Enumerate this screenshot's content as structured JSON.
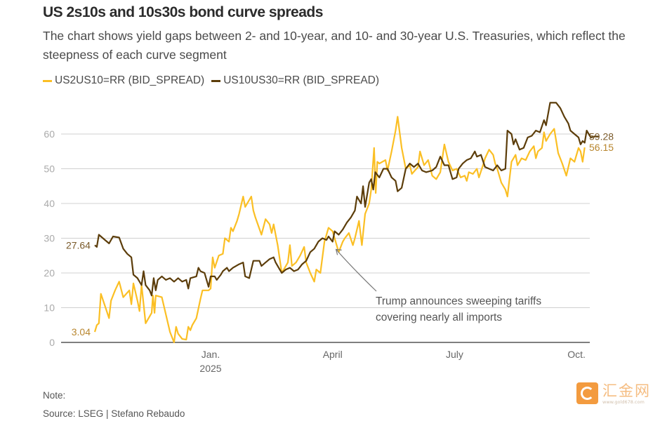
{
  "header": {
    "title": "US 2s10s and 10s30s bond curve spreads",
    "subtitle": "The chart shows yield gaps between 2- and 10-year, and 10- and 30-year U.S. Treasuries, which reflect the steepness of each curve segment"
  },
  "legend": [
    {
      "label": "US2US10=RR (BID_SPREAD)",
      "color": "#fbbf24"
    },
    {
      "label": "US10US30=RR (BID_SPREAD)",
      "color": "#5c3d0a"
    }
  ],
  "footer": {
    "note": "Note:",
    "source": "Source: LSEG | Stefano Rebaudo"
  },
  "watermark": {
    "name": "汇金网",
    "url": "www.gold678.com"
  },
  "chart_data": {
    "type": "line",
    "title": "US 2s10s and 10s30s bond curve spreads",
    "xlabel": "",
    "ylabel": "",
    "x_unit": "months since Jan 1 2025",
    "xlim": [
      -2.85,
      9.2
    ],
    "ylim": [
      0,
      65
    ],
    "yticks": [
      0,
      10,
      20,
      30,
      40,
      50,
      60
    ],
    "xticks": [
      {
        "value": 0,
        "label": "Jan.",
        "sublabel": "2025"
      },
      {
        "value": 3,
        "label": "April",
        "sublabel": ""
      },
      {
        "value": 6,
        "label": "July",
        "sublabel": ""
      },
      {
        "value": 9,
        "label": "Oct.",
        "sublabel": ""
      }
    ],
    "grid": true,
    "legend_position": "top-left",
    "series": [
      {
        "name": "US2US10=RR (BID_SPREAD)",
        "color": "#fbbf24",
        "start_label": "3.04",
        "end_label": "56.15",
        "points": [
          [
            -2.85,
            3.0
          ],
          [
            -2.8,
            5.0
          ],
          [
            -2.75,
            5.5
          ],
          [
            -2.7,
            14.0
          ],
          [
            -2.6,
            10.5
          ],
          [
            -2.5,
            7.0
          ],
          [
            -2.45,
            12.0
          ],
          [
            -2.35,
            15.0
          ],
          [
            -2.25,
            17.5
          ],
          [
            -2.15,
            13.0
          ],
          [
            -2.0,
            15.0
          ],
          [
            -1.95,
            11.0
          ],
          [
            -1.9,
            17.0
          ],
          [
            -1.8,
            12.0
          ],
          [
            -1.75,
            9.0
          ],
          [
            -1.7,
            16.5
          ],
          [
            -1.6,
            5.5
          ],
          [
            -1.45,
            8.5
          ],
          [
            -1.42,
            13.5
          ],
          [
            -1.38,
            8.5
          ],
          [
            -1.35,
            13.5
          ],
          [
            -1.2,
            13.0
          ],
          [
            -1.1,
            8.0
          ],
          [
            -1.0,
            3.0
          ],
          [
            -0.9,
            0.0
          ],
          [
            -0.85,
            4.5
          ],
          [
            -0.8,
            2.5
          ],
          [
            -0.7,
            1.0
          ],
          [
            -0.6,
            0.8
          ],
          [
            -0.55,
            4.5
          ],
          [
            -0.5,
            3.5
          ],
          [
            -0.45,
            5.0
          ],
          [
            -0.35,
            7.0
          ],
          [
            -0.25,
            12.5
          ],
          [
            -0.2,
            15.0
          ],
          [
            -0.05,
            15.0
          ],
          [
            0.0,
            15.5
          ],
          [
            0.05,
            24.5
          ],
          [
            0.1,
            21.5
          ],
          [
            0.2,
            25.0
          ],
          [
            0.3,
            25.5
          ],
          [
            0.35,
            30.0
          ],
          [
            0.45,
            29.0
          ],
          [
            0.5,
            33.0
          ],
          [
            0.55,
            32.0
          ],
          [
            0.65,
            35.0
          ],
          [
            0.7,
            37.0
          ],
          [
            0.8,
            42.0
          ],
          [
            0.85,
            39.0
          ],
          [
            0.95,
            41.0
          ],
          [
            1.0,
            42.0
          ],
          [
            1.05,
            38.0
          ],
          [
            1.1,
            36.0
          ],
          [
            1.25,
            31.0
          ],
          [
            1.35,
            35.5
          ],
          [
            1.45,
            34.0
          ],
          [
            1.5,
            31.5
          ],
          [
            1.55,
            34.0
          ],
          [
            1.65,
            28.0
          ],
          [
            1.75,
            20.0
          ],
          [
            1.8,
            21.0
          ],
          [
            1.9,
            23.0
          ],
          [
            1.95,
            28.0
          ],
          [
            2.0,
            22.0
          ],
          [
            2.1,
            23.0
          ],
          [
            2.2,
            25.0
          ],
          [
            2.3,
            27.5
          ],
          [
            2.35,
            23.0
          ],
          [
            2.45,
            20.0
          ],
          [
            2.55,
            17.5
          ],
          [
            2.6,
            21.0
          ],
          [
            2.7,
            20.0
          ],
          [
            2.8,
            29.0
          ],
          [
            2.9,
            33.0
          ],
          [
            3.0,
            32.0
          ],
          [
            3.1,
            28.0
          ],
          [
            3.15,
            26.0
          ],
          [
            3.25,
            29.0
          ],
          [
            3.3,
            30.0
          ],
          [
            3.4,
            31.5
          ],
          [
            3.5,
            28.0
          ],
          [
            3.55,
            30.0
          ],
          [
            3.65,
            35.0
          ],
          [
            3.72,
            28.0
          ],
          [
            3.8,
            37.0
          ],
          [
            3.9,
            40.0
          ],
          [
            3.95,
            44.0
          ],
          [
            4.02,
            56.0
          ],
          [
            4.06,
            43.0
          ],
          [
            4.1,
            52.0
          ],
          [
            4.15,
            51.5
          ],
          [
            4.3,
            52.5
          ],
          [
            4.35,
            49.5
          ],
          [
            4.45,
            55.0
          ],
          [
            4.55,
            61.0
          ],
          [
            4.6,
            65.0
          ],
          [
            4.7,
            56.0
          ],
          [
            4.8,
            50.0
          ],
          [
            4.9,
            51.0
          ],
          [
            4.95,
            48.5
          ],
          [
            5.1,
            50.5
          ],
          [
            5.15,
            55.0
          ],
          [
            5.25,
            51.0
          ],
          [
            5.35,
            52.5
          ],
          [
            5.45,
            48.0
          ],
          [
            5.55,
            47.0
          ],
          [
            5.65,
            49.0
          ],
          [
            5.75,
            57.0
          ],
          [
            5.85,
            52.0
          ],
          [
            5.95,
            49.5
          ],
          [
            6.05,
            50.0
          ],
          [
            6.15,
            47.5
          ],
          [
            6.25,
            48.0
          ],
          [
            6.3,
            46.5
          ],
          [
            6.35,
            49.0
          ],
          [
            6.45,
            48.5
          ],
          [
            6.55,
            50.0
          ],
          [
            6.6,
            47.5
          ],
          [
            6.7,
            51.0
          ],
          [
            6.75,
            53.0
          ],
          [
            6.85,
            55.5
          ],
          [
            6.95,
            54.0
          ],
          [
            7.0,
            51.5
          ],
          [
            7.05,
            50.0
          ],
          [
            7.15,
            46.0
          ],
          [
            7.25,
            44.0
          ],
          [
            7.3,
            42.0
          ],
          [
            7.4,
            52.0
          ],
          [
            7.5,
            54.0
          ],
          [
            7.55,
            51.0
          ],
          [
            7.65,
            53.0
          ],
          [
            7.75,
            52.5
          ],
          [
            7.85,
            55.0
          ],
          [
            7.95,
            56.5
          ],
          [
            8.0,
            53.0
          ],
          [
            8.05,
            55.0
          ],
          [
            8.15,
            56.0
          ],
          [
            8.2,
            60.5
          ],
          [
            8.25,
            58.0
          ],
          [
            8.35,
            60.0
          ],
          [
            8.45,
            61.5
          ],
          [
            8.55,
            54.5
          ],
          [
            8.65,
            51.5
          ],
          [
            8.75,
            48.0
          ],
          [
            8.85,
            53.0
          ],
          [
            8.95,
            52.0
          ],
          [
            9.05,
            56.0
          ],
          [
            9.1,
            55.0
          ],
          [
            9.15,
            52.0
          ],
          [
            9.2,
            56.15
          ]
        ]
      },
      {
        "name": "US10US30=RR (BID_SPREAD)",
        "color": "#5c3d0a",
        "start_label": "27.64",
        "end_label": "59.28",
        "points": [
          [
            -2.85,
            28.0
          ],
          [
            -2.8,
            27.5
          ],
          [
            -2.75,
            31.0
          ],
          [
            -2.6,
            29.5
          ],
          [
            -2.5,
            28.5
          ],
          [
            -2.4,
            30.5
          ],
          [
            -2.25,
            30.2
          ],
          [
            -2.15,
            27.0
          ],
          [
            -2.05,
            25.5
          ],
          [
            -1.95,
            24.5
          ],
          [
            -1.9,
            19.5
          ],
          [
            -1.8,
            18.5
          ],
          [
            -1.7,
            16.5
          ],
          [
            -1.65,
            20.5
          ],
          [
            -1.6,
            16.5
          ],
          [
            -1.5,
            15.0
          ],
          [
            -1.45,
            13.5
          ],
          [
            -1.4,
            18.5
          ],
          [
            -1.35,
            15.0
          ],
          [
            -1.3,
            18.0
          ],
          [
            -1.2,
            19.0
          ],
          [
            -1.1,
            18.0
          ],
          [
            -1.0,
            18.5
          ],
          [
            -0.9,
            17.5
          ],
          [
            -0.8,
            18.5
          ],
          [
            -0.7,
            17.5
          ],
          [
            -0.6,
            18.0
          ],
          [
            -0.55,
            15.5
          ],
          [
            -0.5,
            18.5
          ],
          [
            -0.35,
            19.0
          ],
          [
            -0.3,
            21.5
          ],
          [
            -0.25,
            20.5
          ],
          [
            -0.15,
            20.0
          ],
          [
            -0.05,
            16.0
          ],
          [
            0.0,
            19.0
          ],
          [
            0.1,
            19.0
          ],
          [
            0.15,
            18.0
          ],
          [
            0.25,
            19.5
          ],
          [
            0.3,
            20.5
          ],
          [
            0.4,
            21.5
          ],
          [
            0.45,
            20.5
          ],
          [
            0.55,
            21.5
          ],
          [
            0.7,
            22.5
          ],
          [
            0.8,
            23.0
          ],
          [
            0.85,
            19.0
          ],
          [
            0.95,
            18.5
          ],
          [
            1.05,
            23.5
          ],
          [
            1.2,
            23.5
          ],
          [
            1.25,
            22.0
          ],
          [
            1.35,
            23.0
          ],
          [
            1.45,
            24.0
          ],
          [
            1.55,
            24.5
          ],
          [
            1.6,
            23.0
          ],
          [
            1.7,
            21.0
          ],
          [
            1.75,
            20.0
          ],
          [
            1.85,
            21.0
          ],
          [
            1.95,
            21.5
          ],
          [
            2.05,
            20.5
          ],
          [
            2.15,
            21.0
          ],
          [
            2.25,
            22.5
          ],
          [
            2.35,
            23.5
          ],
          [
            2.45,
            26.0
          ],
          [
            2.55,
            27.0
          ],
          [
            2.65,
            29.0
          ],
          [
            2.75,
            30.0
          ],
          [
            2.85,
            29.5
          ],
          [
            2.9,
            30.5
          ],
          [
            3.0,
            29.0
          ],
          [
            3.05,
            32.0
          ],
          [
            3.15,
            31.0
          ],
          [
            3.25,
            32.5
          ],
          [
            3.35,
            34.5
          ],
          [
            3.45,
            36.0
          ],
          [
            3.55,
            38.0
          ],
          [
            3.6,
            42.0
          ],
          [
            3.7,
            40.0
          ],
          [
            3.75,
            45.0
          ],
          [
            3.8,
            39.0
          ],
          [
            3.9,
            46.0
          ],
          [
            3.95,
            47.0
          ],
          [
            4.0,
            44.0
          ],
          [
            4.05,
            49.0
          ],
          [
            4.15,
            47.5
          ],
          [
            4.25,
            50.0
          ],
          [
            4.35,
            50.0
          ],
          [
            4.45,
            47.5
          ],
          [
            4.55,
            46.5
          ],
          [
            4.6,
            43.5
          ],
          [
            4.7,
            44.5
          ],
          [
            4.8,
            50.0
          ],
          [
            4.9,
            51.5
          ],
          [
            5.0,
            50.5
          ],
          [
            5.1,
            51.5
          ],
          [
            5.2,
            49.5
          ],
          [
            5.3,
            49.0
          ],
          [
            5.45,
            49.5
          ],
          [
            5.55,
            50.5
          ],
          [
            5.65,
            53.5
          ],
          [
            5.75,
            51.0
          ],
          [
            5.85,
            51.0
          ],
          [
            5.95,
            47.0
          ],
          [
            6.05,
            47.5
          ],
          [
            6.1,
            50.0
          ],
          [
            6.2,
            51.5
          ],
          [
            6.3,
            52.5
          ],
          [
            6.4,
            53.0
          ],
          [
            6.5,
            55.0
          ],
          [
            6.55,
            53.5
          ],
          [
            6.65,
            54.0
          ],
          [
            6.75,
            50.5
          ],
          [
            6.85,
            50.0
          ],
          [
            6.95,
            49.5
          ],
          [
            7.05,
            51.0
          ],
          [
            7.15,
            49.5
          ],
          [
            7.25,
            50.0
          ],
          [
            7.3,
            61.0
          ],
          [
            7.4,
            60.0
          ],
          [
            7.45,
            57.0
          ],
          [
            7.5,
            58.5
          ],
          [
            7.6,
            55.5
          ],
          [
            7.7,
            56.0
          ],
          [
            7.8,
            59.0
          ],
          [
            7.9,
            59.5
          ],
          [
            8.0,
            61.0
          ],
          [
            8.1,
            60.5
          ],
          [
            8.2,
            64.0
          ],
          [
            8.25,
            62.5
          ],
          [
            8.35,
            69.0
          ],
          [
            8.5,
            69.0
          ],
          [
            8.6,
            67.5
          ],
          [
            8.7,
            65.0
          ],
          [
            8.8,
            63.0
          ],
          [
            8.85,
            61.0
          ],
          [
            8.95,
            60.0
          ],
          [
            9.05,
            59.0
          ],
          [
            9.1,
            57.0
          ],
          [
            9.15,
            58.0
          ],
          [
            9.2,
            57.5
          ],
          [
            9.25,
            61.0
          ],
          [
            9.35,
            59.0
          ],
          [
            9.45,
            59.3
          ],
          [
            9.55,
            59.28
          ]
        ]
      }
    ],
    "annotations": [
      {
        "text_lines": [
          "Trump announces sweeping tariffs",
          "covering nearly all imports"
        ],
        "x": 3.05,
        "y": 28
      }
    ]
  }
}
